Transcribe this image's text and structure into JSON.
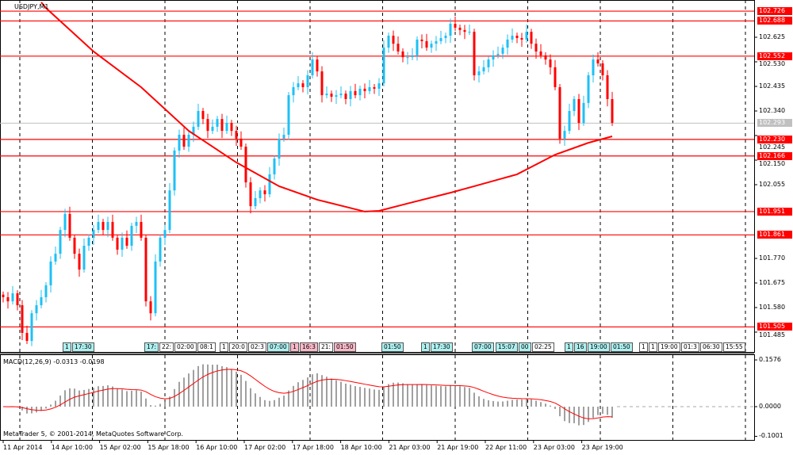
{
  "chart_data": {
    "type": "candlestick",
    "symbol_title": "USDJPY,M1",
    "colors": {
      "bull": "#1ec0f5",
      "bear": "#ff0000",
      "moving_average": "#ff0000",
      "level_line": "#ff0000",
      "current_price": "#c0c0c0"
    },
    "closes": [
      101.62,
      101.604,
      101.635,
      101.589,
      101.482,
      101.451,
      101.558,
      101.589,
      101.62,
      101.666,
      101.758,
      101.788,
      101.88,
      101.942,
      101.85,
      101.788,
      101.727,
      101.819,
      101.85,
      101.88,
      101.911,
      101.88,
      101.911,
      101.85,
      101.804,
      101.85,
      101.819,
      101.896,
      101.911,
      101.85,
      101.604,
      101.558,
      101.758,
      101.85,
      101.88,
      102.033,
      102.187,
      102.248,
      102.202,
      102.248,
      102.279,
      102.34,
      102.309,
      102.263,
      102.279,
      102.309,
      102.263,
      102.294,
      102.263,
      102.233,
      102.202,
      102.064,
      101.972,
      102.003,
      102.033,
      102.018,
      102.095,
      102.156,
      102.233,
      102.248,
      102.401,
      102.432,
      102.447,
      102.432,
      102.478,
      102.539,
      102.493,
      102.401,
      102.407,
      102.395,
      102.401,
      102.407,
      102.386,
      102.417,
      102.401,
      102.426,
      102.417,
      102.432,
      102.426,
      102.447,
      102.585,
      102.631,
      102.6,
      102.57,
      102.548,
      102.548,
      102.555,
      102.616,
      102.61,
      102.585,
      102.6,
      102.61,
      102.622,
      102.631,
      102.677,
      102.662,
      102.653,
      102.646,
      102.646,
      102.478,
      102.493,
      102.509,
      102.539,
      102.555,
      102.561,
      102.585,
      102.616,
      102.631,
      102.622,
      102.616,
      102.646,
      102.6,
      102.57,
      102.555,
      102.539,
      102.509,
      102.432,
      102.233,
      102.263,
      102.34,
      102.386,
      102.294,
      102.371,
      102.478,
      102.539,
      102.524,
      102.478,
      102.386,
      102.294
    ],
    "moving_average": [
      {
        "bar": 8,
        "value": 102.76
      },
      {
        "bar": 9,
        "value": 102.738
      },
      {
        "bar": 19,
        "value": 102.57
      },
      {
        "bar": 29,
        "value": 102.432
      },
      {
        "bar": 39,
        "value": 102.263
      },
      {
        "bar": 49,
        "value": 102.141
      },
      {
        "bar": 58,
        "value": 102.049
      },
      {
        "bar": 66,
        "value": 101.997
      },
      {
        "bar": 76,
        "value": 101.951
      },
      {
        "bar": 79,
        "value": 101.954
      },
      {
        "bar": 86,
        "value": 101.987
      },
      {
        "bar": 94,
        "value": 102.024
      },
      {
        "bar": 99,
        "value": 102.049
      },
      {
        "bar": 108,
        "value": 102.095
      },
      {
        "bar": 116,
        "value": 102.171
      },
      {
        "bar": 123,
        "value": 102.217
      },
      {
        "bar": 128,
        "value": 102.242
      }
    ],
    "price_axis_ticks": [
      "102.625",
      "102.530",
      "102.435",
      "102.340",
      "102.245",
      "102.150",
      "102.055",
      "101.770",
      "101.675",
      "101.580",
      "101.485"
    ],
    "level_lines": [
      "102.726",
      "102.688",
      "102.552",
      "102.230",
      "102.166",
      "101.951",
      "101.861",
      "101.505"
    ],
    "current_price": "102.293",
    "time_axis_labels": [
      "11 Apr 2014",
      "14 Apr 10:00",
      "15 Apr 02:00",
      "15 Apr 18:00",
      "16 Apr 10:00",
      "17 Apr 02:00",
      "17 Apr 18:00",
      "18 Apr 10:00",
      "21 Apr 03:00",
      "21 Apr 19:00",
      "22 Apr 11:00",
      "23 Apr 03:00",
      "23 Apr 19:00"
    ],
    "event_labels": [
      {
        "text": "1",
        "kind": "cyan"
      },
      {
        "text": "17:30",
        "kind": "cyan"
      },
      {
        "text": "17:",
        "kind": "cyan"
      },
      {
        "text": "22:",
        "kind": "white"
      },
      {
        "text": "02:00",
        "kind": "white"
      },
      {
        "text": "08:1",
        "kind": "white"
      },
      {
        "text": "1",
        "kind": "white"
      },
      {
        "text": "20:0",
        "kind": "white"
      },
      {
        "text": "02:3",
        "kind": "white"
      },
      {
        "text": "07:00",
        "kind": "cyan"
      },
      {
        "text": "1",
        "kind": "pink"
      },
      {
        "text": "16:3",
        "kind": "pink"
      },
      {
        "text": "21:",
        "kind": "white"
      },
      {
        "text": "01:50",
        "kind": "pink"
      },
      {
        "text": "01:50",
        "kind": "cyan"
      },
      {
        "text": "1",
        "kind": "cyan"
      },
      {
        "text": "17:30",
        "kind": "cyan"
      },
      {
        "text": "07:00",
        "kind": "cyan"
      },
      {
        "text": "15:07",
        "kind": "cyan"
      },
      {
        "text": "00",
        "kind": "cyan"
      },
      {
        "text": "02:25",
        "kind": "white"
      },
      {
        "text": "1",
        "kind": "cyan"
      },
      {
        "text": "16",
        "kind": "cyan"
      },
      {
        "text": "19:00",
        "kind": "cyan"
      },
      {
        "text": "01:50",
        "kind": "cyan"
      },
      {
        "text": "1",
        "kind": "white"
      },
      {
        "text": "1",
        "kind": "white"
      },
      {
        "text": "19:00",
        "kind": "white"
      },
      {
        "text": "01:3",
        "kind": "white"
      },
      {
        "text": "06:30",
        "kind": "white"
      },
      {
        "text": "15:55",
        "kind": "white"
      }
    ],
    "event_colors": {
      "cyan": "#aef0f0",
      "pink": "#f8b8c8",
      "white": "#ffffff"
    },
    "macd": {
      "title": "MACD(12,26,9) -0.0313 -0.0198",
      "axis_ticks": [
        "0.1576",
        "0.0000",
        "-0.1001"
      ],
      "histogram_color": "#808080",
      "signal_color": "#ff0000"
    }
  },
  "footer": {
    "copyright": "MetaTrader 5, © 2001-2014, MetaQuotes Software Corp."
  }
}
